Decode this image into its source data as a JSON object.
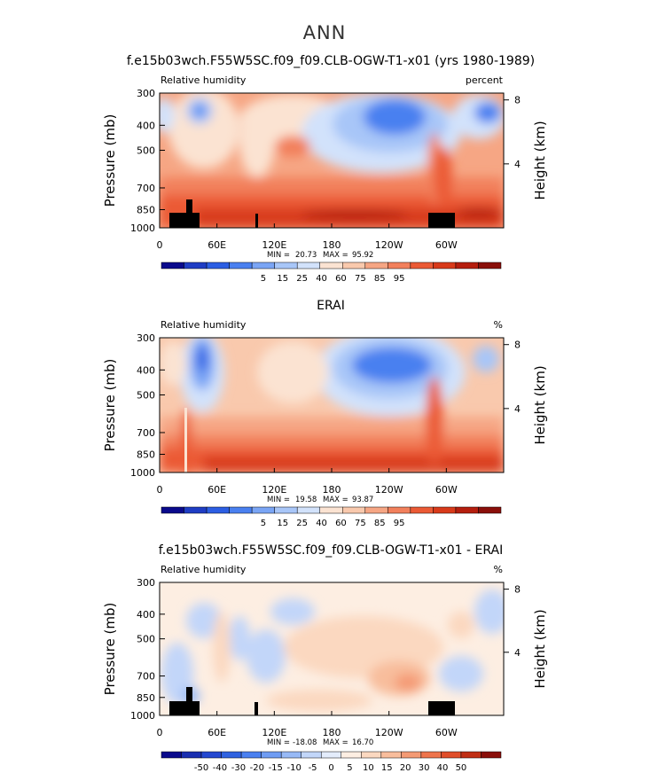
{
  "figure": {
    "season_title": "ANN"
  },
  "chart_data": [
    {
      "type": "heatmap",
      "title": "f.e15b03wch.F55W5SC.f09_f09.CLB-OGW-T1-x01 (yrs 1980-1989)",
      "field_label": "Relative humidity",
      "units": "percent",
      "ylabel": "Pressure (mb)",
      "y2label": "Height (km)",
      "xticks": [
        "0",
        "60E",
        "120E",
        "180",
        "120W",
        "60W"
      ],
      "xtick_lon": [
        0,
        60,
        120,
        180,
        240,
        300
      ],
      "xlim": [
        0,
        360
      ],
      "yticks": [
        "300",
        "400",
        "500",
        "700",
        "850",
        "1000"
      ],
      "ytick_p": [
        300,
        400,
        500,
        700,
        850,
        1000
      ],
      "ylim": [
        300,
        1000
      ],
      "y2ticks": [
        "8",
        "4"
      ],
      "y2tick_km": [
        8,
        4
      ],
      "min_label": "MIN =",
      "min": "20.73",
      "max_label": "MAX =",
      "max": "95.92",
      "levels": [
        "5",
        "15",
        "25",
        "40",
        "60",
        "75",
        "85",
        "95"
      ],
      "colors": [
        "#0a0a8c",
        "#1f3dc4",
        "#2c5ee3",
        "#4a80f0",
        "#7aa5f5",
        "#a8c6f8",
        "#d2e2fb",
        "#fbe3d2",
        "#f9c9ad",
        "#f6a684",
        "#f2805c",
        "#eb5a35",
        "#d83a1a",
        "#b51e0e",
        "#8a0f0a"
      ]
    },
    {
      "type": "heatmap",
      "title": "ERAI",
      "field_label": "Relative humidity",
      "units": "%",
      "ylabel": "Pressure (mb)",
      "y2label": "Height (km)",
      "xticks": [
        "0",
        "60E",
        "120E",
        "180",
        "120W",
        "60W"
      ],
      "xtick_lon": [
        0,
        60,
        120,
        180,
        240,
        300
      ],
      "xlim": [
        0,
        360
      ],
      "yticks": [
        "300",
        "400",
        "500",
        "700",
        "850",
        "1000"
      ],
      "ytick_p": [
        300,
        400,
        500,
        700,
        850,
        1000
      ],
      "ylim": [
        300,
        1000
      ],
      "y2ticks": [
        "8",
        "4"
      ],
      "y2tick_km": [
        8,
        4
      ],
      "min_label": "MIN =",
      "min": "19.58",
      "max_label": "MAX =",
      "max": "93.87",
      "levels": [
        "5",
        "15",
        "25",
        "40",
        "60",
        "75",
        "85",
        "95"
      ],
      "colors": [
        "#0a0a8c",
        "#1f3dc4",
        "#2c5ee3",
        "#4a80f0",
        "#7aa5f5",
        "#a8c6f8",
        "#d2e2fb",
        "#fbe3d2",
        "#f9c9ad",
        "#f6a684",
        "#f2805c",
        "#eb5a35",
        "#d83a1a",
        "#b51e0e",
        "#8a0f0a"
      ]
    },
    {
      "type": "heatmap",
      "title": "f.e15b03wch.F55W5SC.f09_f09.CLB-OGW-T1-x01 - ERAI",
      "field_label": "Relative humidity",
      "units": "%",
      "ylabel": "Pressure (mb)",
      "y2label": "Height (km)",
      "xticks": [
        "0",
        "60E",
        "120E",
        "180",
        "120W",
        "60W"
      ],
      "xtick_lon": [
        0,
        60,
        120,
        180,
        240,
        300
      ],
      "xlim": [
        0,
        360
      ],
      "yticks": [
        "300",
        "400",
        "500",
        "700",
        "850",
        "1000"
      ],
      "ytick_p": [
        300,
        400,
        500,
        700,
        850,
        1000
      ],
      "ylim": [
        300,
        1000
      ],
      "y2ticks": [
        "8",
        "4"
      ],
      "y2tick_km": [
        8,
        4
      ],
      "min_label": "MIN =",
      "min": "-18.08",
      "max_label": "MAX =",
      "max": "16.70",
      "levels": [
        "-50",
        "-40",
        "-30",
        "-20",
        "-15",
        "-10",
        "-5",
        "0",
        "5",
        "10",
        "15",
        "20",
        "30",
        "40",
        "50"
      ],
      "colors": [
        "#0a0a8c",
        "#1a2fb0",
        "#2448d0",
        "#2f62e0",
        "#4a80f0",
        "#6f9cf3",
        "#97b9f6",
        "#c2d6f9",
        "#e3ecfb",
        "#fdeee2",
        "#fbd8c0",
        "#f8bd9c",
        "#f49a74",
        "#ee744c",
        "#e04e2a",
        "#c02e14",
        "#8a0f0a"
      ]
    }
  ]
}
